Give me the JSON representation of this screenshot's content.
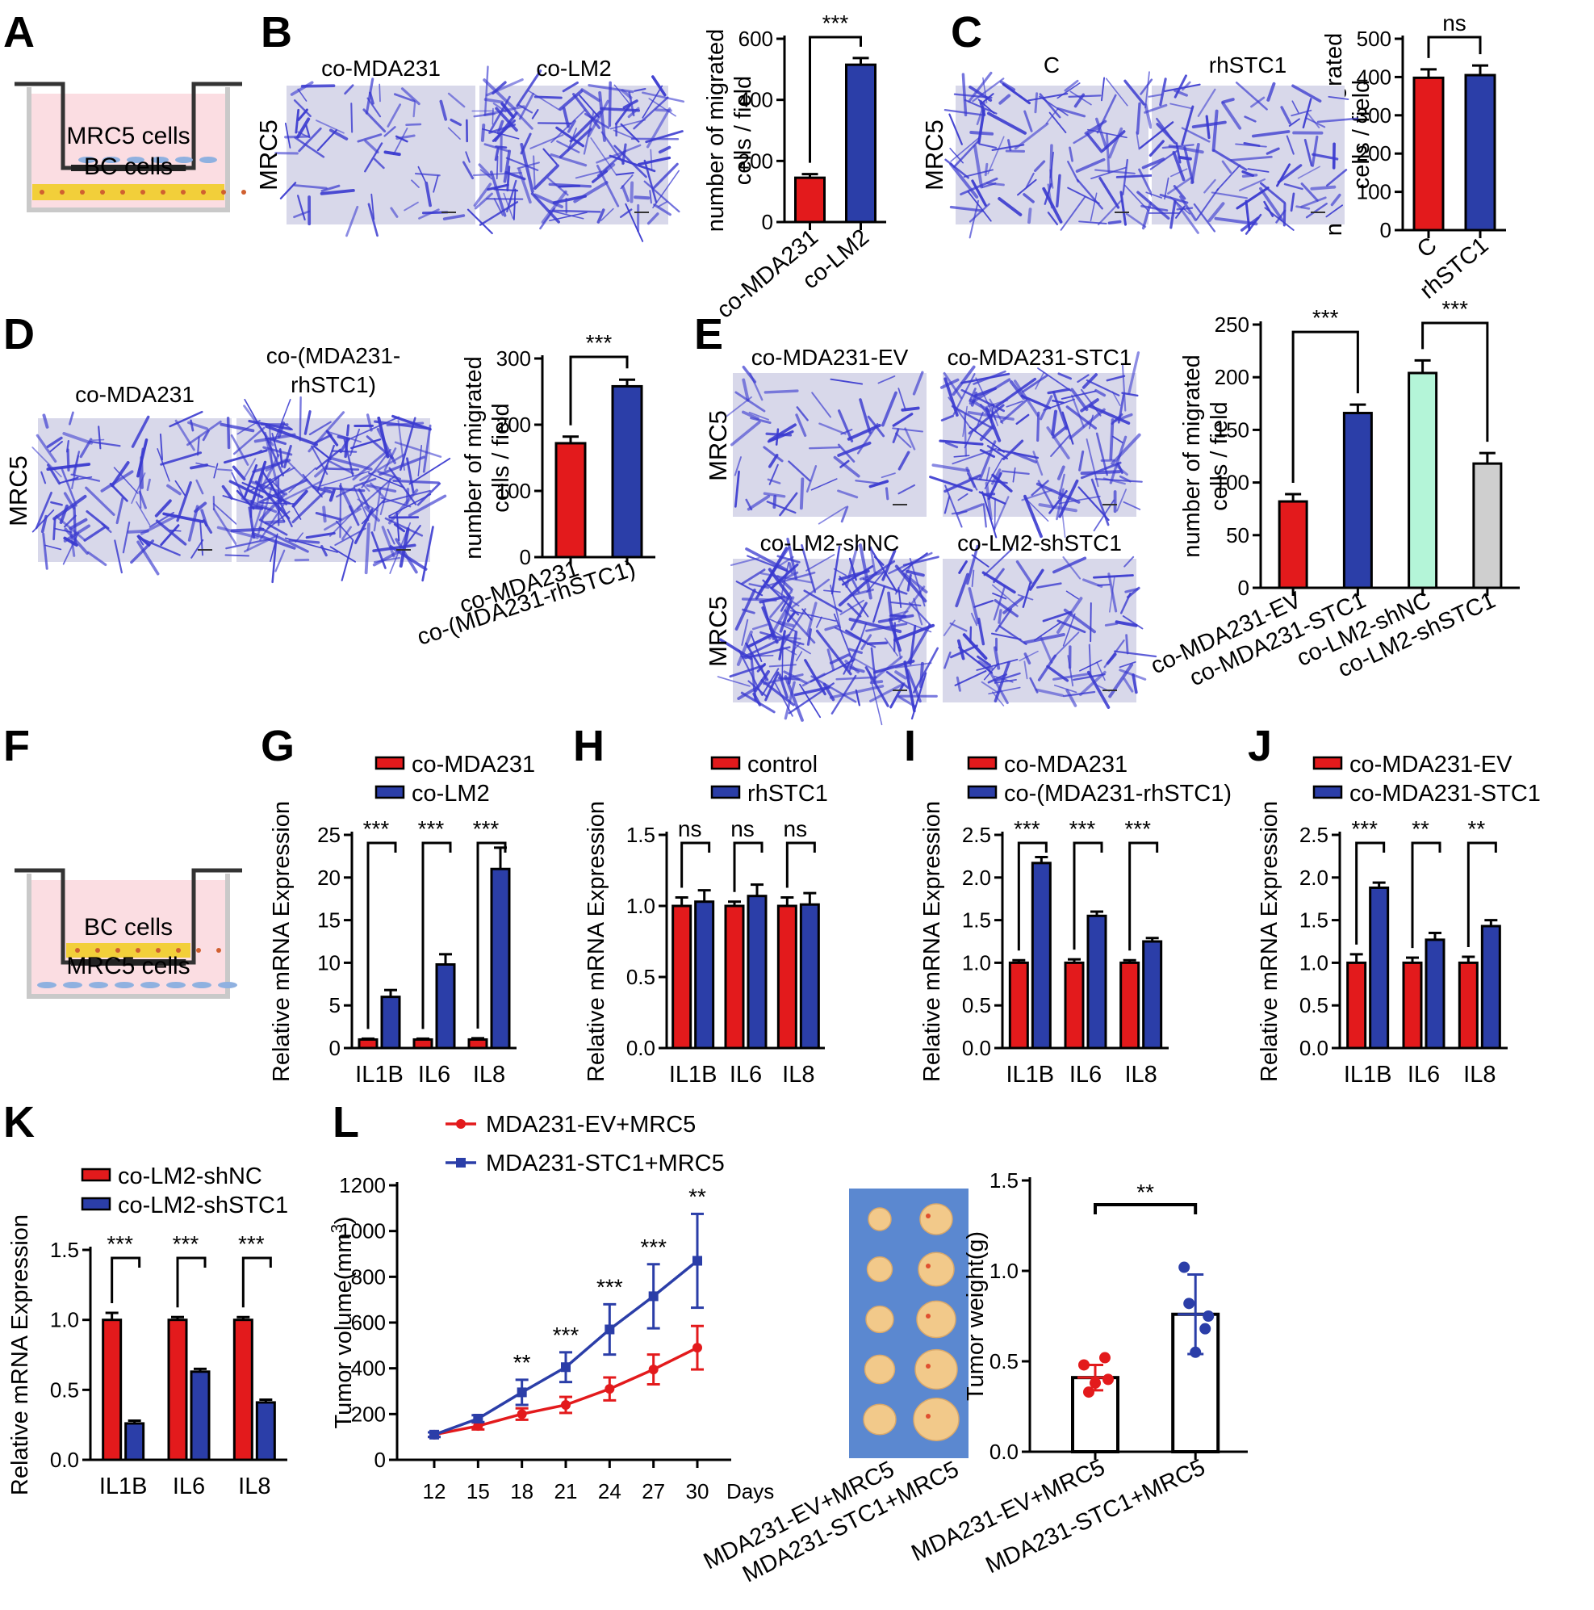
{
  "colors": {
    "red": "#e31a1c",
    "blue": "#2b3ea8",
    "green": "#b4f5d8",
    "gray": "#cfcfcf",
    "micro_bg": "#d8d8ea",
    "stain": "#3a3ad0",
    "pink": "#fbdde2",
    "tray": "#c9c9c9",
    "bc": "#f2cf3a",
    "mrc": "#8fb1e0",
    "tumor_bg": "#5b88d0",
    "tumor": "#f2c98a"
  },
  "panels": {
    "A": "A",
    "B": "B",
    "C": "C",
    "D": "D",
    "E": "E",
    "F": "F",
    "G": "G",
    "H": "H",
    "I": "I",
    "J": "J",
    "K": "K",
    "L": "L"
  },
  "schematic_A": {
    "top": "MRC5 cells",
    "bottom": "BC cells"
  },
  "schematic_F": {
    "top": "BC cells",
    "bottom": "MRC5 cells"
  },
  "micro": {
    "B": {
      "side": "MRC5",
      "titles": [
        "co-MDA231",
        "co-LM2"
      ],
      "density": [
        1,
        3
      ]
    },
    "C": {
      "side": "MRC5",
      "titles": [
        "C",
        "rhSTC1"
      ],
      "density": [
        2,
        2
      ]
    },
    "D": {
      "side": "MRC5",
      "titles": [
        "co-MDA231",
        "co-(MDA231-\nrhSTC1)"
      ],
      "density": [
        2,
        4
      ]
    },
    "E": {
      "side": [
        "MRC5",
        "MRC5"
      ],
      "titles": [
        "co-MDA231-EV",
        "co-MDA231-STC1",
        "co-LM2-shNC",
        "co-LM2-shSTC1"
      ],
      "density": [
        1,
        3,
        4,
        2
      ]
    }
  },
  "tumor_photo": {
    "labels": [
      "MDA231-EV+MRC5",
      "MDA231-STC1+MRC5"
    ]
  },
  "chart_data": [
    {
      "id": "B",
      "type": "bar",
      "ylabel": "number of migrated\ncells / field",
      "ylim": [
        0,
        600
      ],
      "yticks": [
        0,
        200,
        400,
        600
      ],
      "categories": [
        "co-MDA231",
        "co-LM2"
      ],
      "values": [
        145,
        515
      ],
      "errors": [
        12,
        22
      ],
      "colors": [
        "red",
        "blue"
      ],
      "sig": [
        {
          "between": [
            0,
            1
          ],
          "label": "***"
        }
      ]
    },
    {
      "id": "C",
      "type": "bar",
      "ylabel": "number of migrated\ncells / field",
      "ylim": [
        0,
        500
      ],
      "yticks": [
        0,
        100,
        200,
        300,
        400,
        500
      ],
      "categories": [
        "C",
        "rhSTC1"
      ],
      "values": [
        398,
        405
      ],
      "errors": [
        22,
        25
      ],
      "colors": [
        "red",
        "blue"
      ],
      "sig": [
        {
          "between": [
            0,
            1
          ],
          "label": "ns"
        }
      ]
    },
    {
      "id": "D",
      "type": "bar",
      "ylabel": "number of migrated\ncells / field",
      "ylim": [
        0,
        300
      ],
      "yticks": [
        0,
        100,
        200,
        300
      ],
      "categories": [
        "co-MDA231",
        "co-(MDA231-rhSTC1)"
      ],
      "values": [
        172,
        258
      ],
      "errors": [
        10,
        10
      ],
      "colors": [
        "red",
        "blue"
      ],
      "sig": [
        {
          "between": [
            0,
            1
          ],
          "label": "***"
        }
      ]
    },
    {
      "id": "E",
      "type": "bar",
      "ylabel": "number of migrated\ncells / field",
      "ylim": [
        0,
        250
      ],
      "yticks": [
        0,
        50,
        100,
        150,
        200,
        250
      ],
      "categories": [
        "co-MDA231-EV",
        "co-MDA231-STC1",
        "co-LM2-shNC",
        "co-LM2-shSTC1"
      ],
      "values": [
        82,
        166,
        204,
        118
      ],
      "errors": [
        7,
        8,
        12,
        10
      ],
      "colors": [
        "red",
        "blue",
        "green",
        "gray"
      ],
      "sig": [
        {
          "between": [
            0,
            1
          ],
          "label": "***"
        },
        {
          "between": [
            2,
            3
          ],
          "label": "***"
        }
      ]
    },
    {
      "id": "G",
      "type": "bar",
      "ylabel": "Relative mRNA Expression",
      "ylim": [
        0,
        25
      ],
      "yticks": [
        0,
        5,
        10,
        15,
        20,
        25
      ],
      "categories": [
        "IL1B",
        "IL6",
        "IL8"
      ],
      "series": [
        {
          "name": "co-MDA231",
          "color": "red",
          "values": [
            1,
            1,
            1
          ],
          "errors": [
            0.1,
            0.1,
            0.15
          ]
        },
        {
          "name": "co-LM2",
          "color": "blue",
          "values": [
            6,
            9.8,
            21
          ],
          "errors": [
            0.8,
            1.2,
            2.5
          ]
        }
      ],
      "sig": [
        "***",
        "***",
        "***"
      ]
    },
    {
      "id": "H",
      "type": "bar",
      "ylabel": "Relative mRNA Expression",
      "ylim": [
        0,
        1.5
      ],
      "yticks": [
        0.0,
        0.5,
        1.0,
        1.5
      ],
      "categories": [
        "IL1B",
        "IL6",
        "IL8"
      ],
      "series": [
        {
          "name": "control",
          "color": "red",
          "values": [
            1.0,
            1.0,
            1.0
          ],
          "errors": [
            0.06,
            0.03,
            0.06
          ]
        },
        {
          "name": "rhSTC1",
          "color": "blue",
          "values": [
            1.03,
            1.07,
            1.01
          ],
          "errors": [
            0.08,
            0.08,
            0.08
          ]
        }
      ],
      "sig": [
        "ns",
        "ns",
        "ns"
      ]
    },
    {
      "id": "I",
      "type": "bar",
      "ylabel": "Relative mRNA Expression",
      "ylim": [
        0,
        2.5
      ],
      "yticks": [
        0.0,
        0.5,
        1.0,
        1.5,
        2.0,
        2.5
      ],
      "categories": [
        "IL1B",
        "IL6",
        "IL8"
      ],
      "series": [
        {
          "name": "co-MDA231",
          "color": "red",
          "values": [
            1.0,
            1.0,
            1.0
          ],
          "errors": [
            0.03,
            0.04,
            0.03
          ]
        },
        {
          "name": "co-(MDA231-rhSTC1)",
          "color": "blue",
          "values": [
            2.17,
            1.55,
            1.25
          ],
          "errors": [
            0.07,
            0.05,
            0.04
          ]
        }
      ],
      "sig": [
        "***",
        "***",
        "***"
      ]
    },
    {
      "id": "J",
      "type": "bar",
      "ylabel": "Relative mRNA Expression",
      "ylim": [
        0,
        2.5
      ],
      "yticks": [
        0.0,
        0.5,
        1.0,
        1.5,
        2.0,
        2.5
      ],
      "categories": [
        "IL1B",
        "IL6",
        "IL8"
      ],
      "series": [
        {
          "name": "co-MDA231-EV",
          "color": "red",
          "values": [
            1.0,
            1.0,
            1.0
          ],
          "errors": [
            0.1,
            0.06,
            0.07
          ]
        },
        {
          "name": "co-MDA231-STC1",
          "color": "blue",
          "values": [
            1.88,
            1.27,
            1.43
          ],
          "errors": [
            0.06,
            0.08,
            0.07
          ]
        }
      ],
      "sig": [
        "***",
        "**",
        "**"
      ]
    },
    {
      "id": "K",
      "type": "bar",
      "ylabel": "Relative mRNA Expression",
      "ylim": [
        0,
        1.5
      ],
      "yticks": [
        0.0,
        0.5,
        1.0,
        1.5
      ],
      "categories": [
        "IL1B",
        "IL6",
        "IL8"
      ],
      "series": [
        {
          "name": "co-LM2-shNC",
          "color": "red",
          "values": [
            1.0,
            1.0,
            1.0
          ],
          "errors": [
            0.05,
            0.02,
            0.02
          ]
        },
        {
          "name": "co-LM2-shSTC1",
          "color": "blue",
          "values": [
            0.26,
            0.63,
            0.41
          ],
          "errors": [
            0.02,
            0.02,
            0.02
          ]
        }
      ],
      "sig": [
        "***",
        "***",
        "***"
      ]
    },
    {
      "id": "L1",
      "type": "line",
      "ylabel": "Tumor volume(mm",
      "ylabel_sup": "3",
      "ylabel_end": ")",
      "xlabel": "Days",
      "ylim": [
        0,
        1200
      ],
      "yticks": [
        0,
        200,
        400,
        600,
        800,
        1000,
        1200
      ],
      "x": [
        12,
        15,
        18,
        21,
        24,
        27,
        30
      ],
      "series": [
        {
          "name": "MDA231-EV+MRC5",
          "color": "red",
          "values": [
            110,
            148,
            200,
            240,
            310,
            395,
            490
          ],
          "errors": [
            10,
            15,
            25,
            35,
            50,
            65,
            95
          ]
        },
        {
          "name": "MDA231-STC1+MRC5",
          "color": "blue",
          "values": [
            110,
            180,
            295,
            405,
            570,
            715,
            870
          ],
          "errors": [
            10,
            15,
            55,
            65,
            110,
            140,
            205
          ]
        }
      ],
      "sig": [
        {
          "x": 18,
          "label": "**"
        },
        {
          "x": 21,
          "label": "***"
        },
        {
          "x": 24,
          "label": "***"
        },
        {
          "x": 27,
          "label": "***"
        },
        {
          "x": 30,
          "label": "**"
        }
      ]
    },
    {
      "id": "L2",
      "type": "scatter",
      "ylabel": "Tumor weight(g)",
      "ylim": [
        0,
        1.5
      ],
      "yticks": [
        0.0,
        0.5,
        1.0,
        1.5
      ],
      "categories": [
        "MDA231-EV+MRC5",
        "MDA231-STC1+MRC5"
      ],
      "means": [
        0.41,
        0.76
      ],
      "sd": [
        0.07,
        0.22
      ],
      "points": [
        [
          0.48,
          0.52,
          0.38,
          0.33,
          0.4
        ],
        [
          1.02,
          0.68,
          0.55,
          0.82,
          0.75
        ]
      ],
      "colors": [
        "red",
        "blue"
      ],
      "sig": "**"
    }
  ]
}
